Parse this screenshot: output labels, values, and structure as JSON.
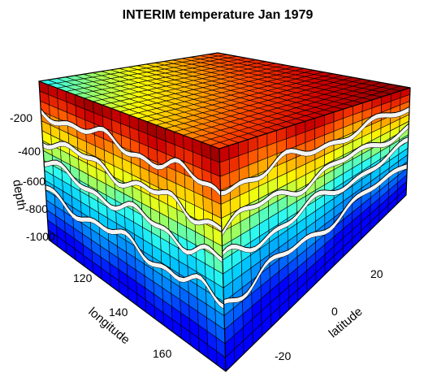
{
  "chart_data": {
    "type": "3d-box",
    "title": "INTERIM temperature Jan 1979",
    "axes": {
      "depth": {
        "label": "depth",
        "ticks": [
          -200,
          -400,
          -600,
          -800,
          -1000
        ]
      },
      "longitude": {
        "label": "longitude",
        "ticks": [
          120,
          140,
          160
        ]
      },
      "latitude": {
        "label": "latitude",
        "ticks": [
          20,
          0,
          -20
        ]
      }
    },
    "colormap": [
      "#0000ff",
      "#0055ff",
      "#0099ff",
      "#00ccff",
      "#33ffee",
      "#99ff66",
      "#ffff00",
      "#ffaa00",
      "#ff4400",
      "#cc0000",
      "#8b0000"
    ],
    "legend": "none"
  }
}
